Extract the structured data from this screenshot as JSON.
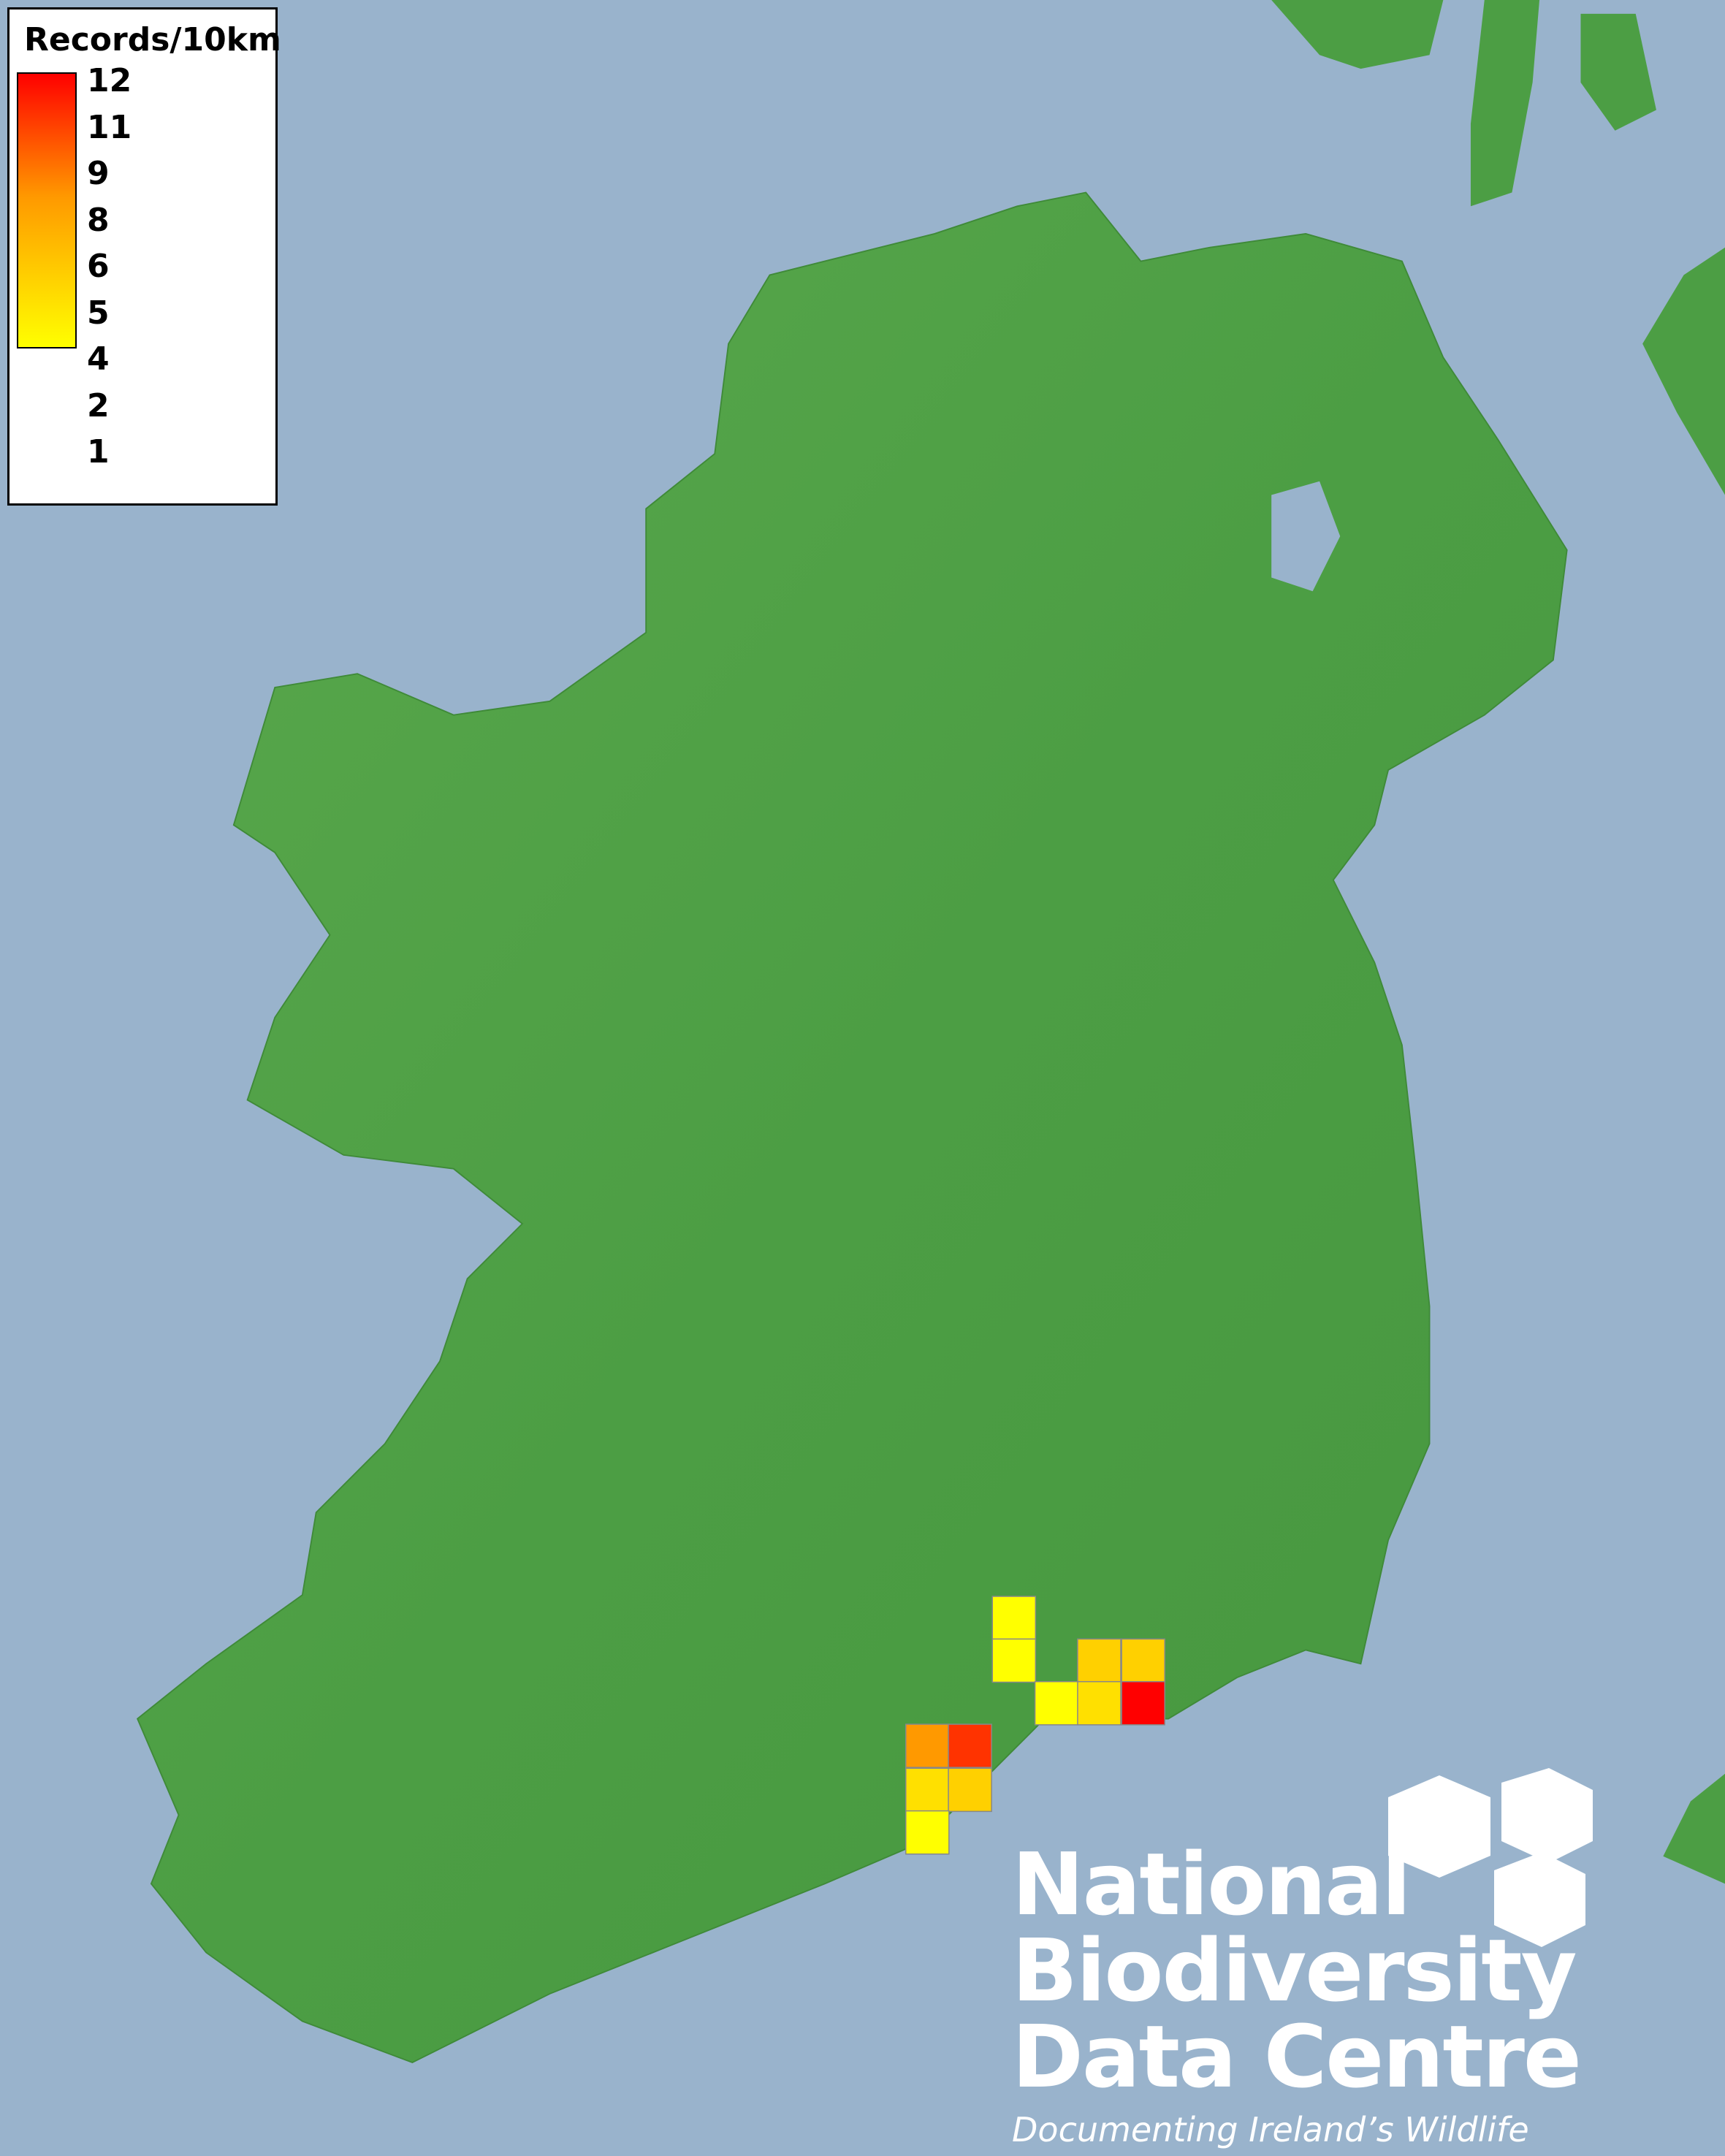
{
  "legend": {
    "title": "Records/10km",
    "labels": [
      "12",
      "11",
      "9",
      "8",
      "6",
      "5",
      "4",
      "2",
      "1"
    ],
    "gradient": {
      "low": "#ffff00",
      "mid": "#ff9900",
      "high": "#ff0000"
    },
    "range": [
      1,
      12
    ]
  },
  "map": {
    "sea_color": "#99b3cc",
    "land_color": "#4c9e44",
    "cell_border_color": "#888888",
    "cells": [
      {
        "records": 1,
        "color": "#ffff00"
      },
      {
        "records": 1,
        "color": "#ffff00"
      },
      {
        "records": 3,
        "color": "#ffd000"
      },
      {
        "records": 3,
        "color": "#ffd000"
      },
      {
        "records": 1,
        "color": "#ffff00"
      },
      {
        "records": 2,
        "color": "#ffe000"
      },
      {
        "records": 12,
        "color": "#ff0000"
      },
      {
        "records": 6,
        "color": "#ff9900"
      },
      {
        "records": 11,
        "color": "#ff3300"
      },
      {
        "records": 2,
        "color": "#ffe000"
      },
      {
        "records": 3,
        "color": "#ffd000"
      },
      {
        "records": 1,
        "color": "#ffff00"
      }
    ]
  },
  "logo": {
    "line1": "National",
    "line2": "Biodiversity",
    "line3": "Data Centre",
    "tagline": "Documenting Ireland’s Wildlife"
  }
}
